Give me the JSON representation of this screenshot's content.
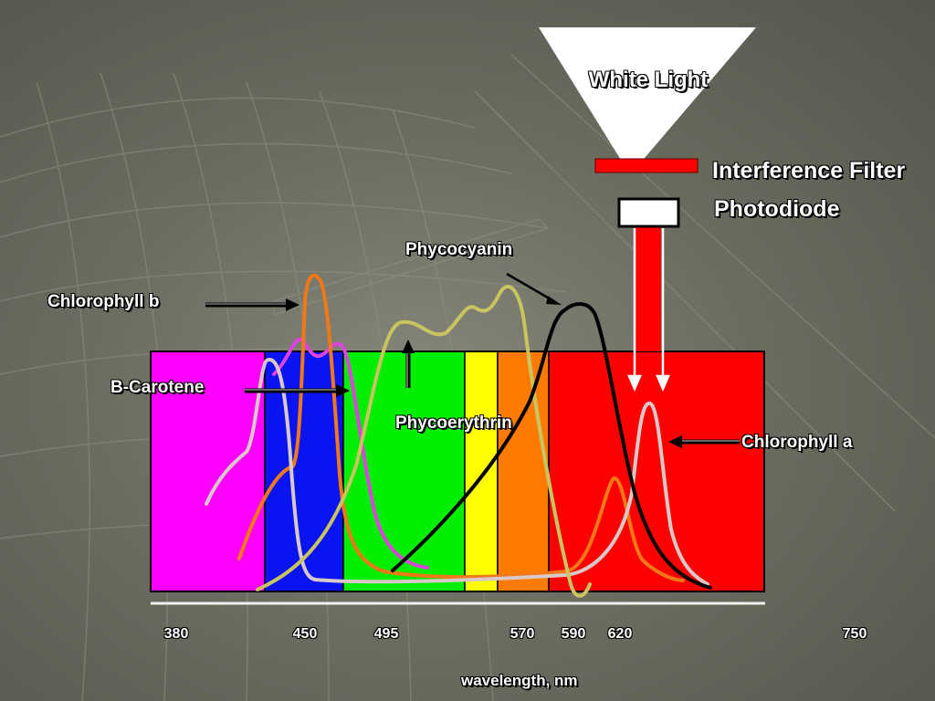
{
  "labels": {
    "white_light": "White Light",
    "interference_filter": "Interference Filter",
    "photodiode": "Photodiode",
    "phycocyanin": "Phycocyanin",
    "chlorophyll_b": "Chlorophyll b",
    "b_carotene": "B-Carotene",
    "phycoerythrin": "Phycoerythrin",
    "chlorophyll_a": "Chlorophyll a",
    "axis_label": "wavelength, nm"
  },
  "axis_ticks": [
    "380",
    "450",
    "495",
    "570",
    "590",
    "620",
    "750"
  ],
  "spectrum_bands": [
    {
      "color": "#ff00ff",
      "from": 380,
      "to": 450
    },
    {
      "color": "#0a14f0",
      "from": 450,
      "to": 495
    },
    {
      "color": "#00ee00",
      "from": 495,
      "to": 560
    },
    {
      "color": "#ffff00",
      "from": 560,
      "to": 580
    },
    {
      "color": "#ff7a00",
      "from": 580,
      "to": 610
    },
    {
      "color": "#ff0000",
      "from": 610,
      "to": 750
    }
  ],
  "curve_colors": {
    "chlorophyll_b": "#f07818",
    "b_carotene": "#dd44dd",
    "phycoerythrin": "#c8c460",
    "phycocyanin": "#000000",
    "chlorophyll_a": "#d8c8c8",
    "chlorophyll_a_secondary": "#f07818"
  },
  "apparatus_colors": {
    "filter": "#ff0000",
    "beam": "#ff0000",
    "photodiode": "#ffffff",
    "cone": "#ffffff"
  }
}
